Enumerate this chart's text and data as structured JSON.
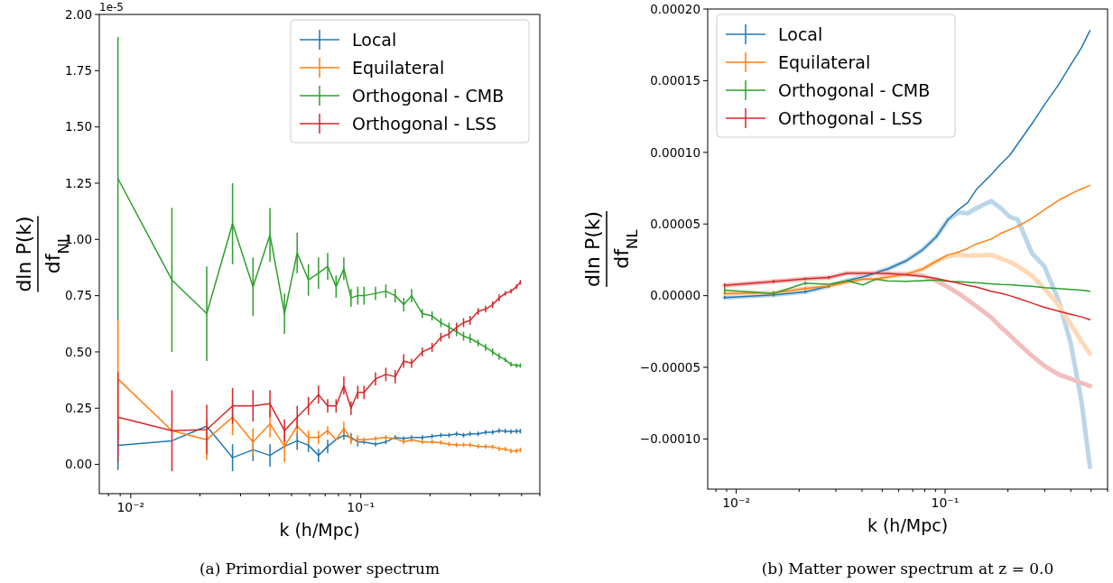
{
  "chart_data": [
    {
      "type": "line",
      "title": "(a) Primordial power spectrum",
      "xlabel": "k (h/Mpc)",
      "ylabel": "dln P(k) df$_{NL}$",
      "annotations": [
        "1e-5"
      ],
      "log": "x",
      "legend": "top right",
      "x": [
        0.0088,
        0.0151,
        0.0214,
        0.0277,
        0.034,
        0.0403,
        0.0466,
        0.0529,
        0.0592,
        0.0655,
        0.0718,
        0.0781,
        0.0844,
        0.0907,
        0.097,
        0.1033,
        0.1159,
        0.1285,
        0.1411,
        0.1537,
        0.1663,
        0.1852,
        0.2041,
        0.223,
        0.2419,
        0.2608,
        0.2797,
        0.2986,
        0.3238,
        0.349,
        0.3742,
        0.3994,
        0.4246,
        0.4498,
        0.475,
        0.4939
      ],
      "xlim": [
        0.0073,
        0.6
      ],
      "xticks": [
        {
          "value": 0.008,
          "label": null
        },
        {
          "value": 0.009,
          "label": null
        },
        {
          "value": 0.01,
          "label": "10⁻²"
        },
        {
          "value": 0.02,
          "label": null
        },
        {
          "value": 0.03,
          "label": null
        },
        {
          "value": 0.04,
          "label": null
        },
        {
          "value": 0.05,
          "label": null
        },
        {
          "value": 0.06,
          "label": null
        },
        {
          "value": 0.07,
          "label": null
        },
        {
          "value": 0.08,
          "label": null
        },
        {
          "value": 0.09,
          "label": null
        },
        {
          "value": 0.1,
          "label": "10⁻¹"
        },
        {
          "value": 0.2,
          "label": null
        },
        {
          "value": 0.3,
          "label": null
        },
        {
          "value": 0.4,
          "label": null
        },
        {
          "value": 0.5,
          "label": null
        },
        {
          "value": 0.6,
          "label": null
        }
      ],
      "ylim": [
        -0.13,
        2.0
      ],
      "yticks": [
        {
          "value": 0,
          "label": "0.00"
        },
        {
          "value": 0.25,
          "label": "0.25"
        },
        {
          "value": 0.5,
          "label": "0.50"
        },
        {
          "value": 0.75,
          "label": "0.75"
        },
        {
          "value": 1.0,
          "label": "1.00"
        },
        {
          "value": 1.25,
          "label": "1.25"
        },
        {
          "value": 1.5,
          "label": "1.50"
        },
        {
          "value": 1.75,
          "label": "1.75"
        },
        {
          "value": 2.0,
          "label": "2.00"
        }
      ],
      "series": [
        {
          "name": "Local",
          "color": "#1f77b4",
          "values": [
            0.085,
            0.105,
            0.17,
            0.03,
            0.065,
            0.04,
            0.08,
            0.105,
            0.085,
            0.04,
            0.08,
            0.11,
            0.13,
            0.12,
            0.1,
            0.1,
            0.09,
            0.1,
            0.12,
            0.115,
            0.12,
            0.12,
            0.125,
            0.13,
            0.13,
            0.136,
            0.13,
            0.136,
            0.136,
            0.143,
            0.143,
            0.15,
            0.148,
            0.146,
            0.148,
            0.148
          ],
          "errors": [
            0.11,
            null,
            null,
            0.06,
            0.05,
            0.05,
            null,
            0.04,
            0.03,
            0.03,
            0.03,
            null,
            0.02,
            0.02,
            0.02,
            0.01,
            0.01,
            0.01,
            0.01,
            0.01,
            0.01,
            0.01,
            0.01,
            0.01,
            0.01,
            0.01,
            0.01,
            0.01,
            0.01,
            0.01,
            0.01,
            0.01,
            0.01,
            0.01,
            0.01,
            0.01
          ]
        },
        {
          "name": "Equilateral",
          "color": "#ff7f0e",
          "values": [
            0.38,
            0.15,
            0.11,
            0.21,
            0.1,
            0.18,
            0.08,
            0.17,
            0.12,
            0.12,
            0.15,
            0.11,
            0.16,
            0.11,
            0.11,
            0.11,
            0.115,
            0.12,
            0.115,
            0.1,
            0.11,
            0.1,
            0.1,
            0.097,
            0.09,
            0.087,
            0.087,
            0.087,
            0.08,
            0.08,
            0.078,
            0.07,
            0.068,
            0.06,
            0.06,
            0.064
          ],
          "errors": [
            0.26,
            null,
            0.09,
            0.08,
            0.06,
            0.06,
            0.07,
            0.04,
            0.03,
            0.03,
            0.02,
            null,
            0.03,
            0.02,
            0.02,
            0.01,
            0.01,
            0.01,
            null,
            0.01,
            0.01,
            0.01,
            0.01,
            0.01,
            0.01,
            0.01,
            0.01,
            0.01,
            0.01,
            0.01,
            0.01,
            0.01,
            0.01,
            0.01,
            0.01,
            0.01
          ]
        },
        {
          "name": "Orthogonal - CMB",
          "color": "#2ca02c",
          "values": [
            1.27,
            0.82,
            0.67,
            1.07,
            0.79,
            1.02,
            0.67,
            0.94,
            0.82,
            0.85,
            0.88,
            0.79,
            0.87,
            0.74,
            0.75,
            0.75,
            0.76,
            0.77,
            0.75,
            0.71,
            0.75,
            0.67,
            0.66,
            0.63,
            0.61,
            0.59,
            0.57,
            0.56,
            0.54,
            0.52,
            0.5,
            0.48,
            0.465,
            0.445,
            0.44,
            0.44
          ],
          "errors": [
            0.63,
            0.32,
            0.21,
            0.18,
            0.13,
            0.12,
            0.09,
            0.09,
            0.07,
            0.07,
            0.06,
            0.05,
            0.05,
            0.04,
            0.04,
            0.04,
            0.03,
            0.03,
            0.03,
            0.03,
            0.03,
            0.02,
            0.02,
            0.02,
            0.02,
            0.02,
            0.02,
            0.02,
            0.015,
            0.015,
            0.015,
            0.015,
            0.01,
            0.01,
            0.01,
            0.01
          ]
        },
        {
          "name": "Orthogonal - LSS",
          "color": "#d62728",
          "values": [
            0.21,
            0.15,
            0.155,
            0.26,
            0.26,
            0.27,
            0.15,
            0.21,
            0.26,
            0.31,
            0.26,
            0.26,
            0.35,
            0.25,
            0.32,
            0.32,
            0.38,
            0.4,
            0.39,
            0.46,
            0.45,
            0.5,
            0.52,
            0.565,
            0.58,
            0.61,
            0.63,
            0.64,
            0.68,
            0.69,
            0.71,
            0.74,
            0.76,
            0.77,
            0.79,
            0.81
          ],
          "errors": [
            0.2,
            0.18,
            0.11,
            0.08,
            0.07,
            0.06,
            0.05,
            0.05,
            0.04,
            0.04,
            0.03,
            0.03,
            0.04,
            0.03,
            0.03,
            0.03,
            0.03,
            0.03,
            0.03,
            0.03,
            0.02,
            0.02,
            0.02,
            0.02,
            0.02,
            0.02,
            0.02,
            0.02,
            0.015,
            0.015,
            0.015,
            0.015,
            0.01,
            0.01,
            0.01,
            0.01
          ]
        }
      ]
    },
    {
      "type": "line",
      "title": "(b) Matter power spectrum at z = 0.0",
      "xlabel": "k (h/Mpc)",
      "ylabel": "dln P(k) df$_{NL}$",
      "log": "x",
      "legend": "top left",
      "x": [
        0.0088,
        0.0151,
        0.0214,
        0.0277,
        0.034,
        0.0403,
        0.0466,
        0.0529,
        0.0655,
        0.0781,
        0.0907,
        0.1033,
        0.1159,
        0.1285,
        0.1411,
        0.1663,
        0.1852,
        0.2041,
        0.223,
        0.2608,
        0.2986,
        0.349,
        0.3994,
        0.4498,
        0.4939
      ],
      "xlim": [
        0.0073,
        0.6
      ],
      "xticks": [
        {
          "value": 0.008,
          "label": null
        },
        {
          "value": 0.009,
          "label": null
        },
        {
          "value": 0.01,
          "label": "10⁻²"
        },
        {
          "value": 0.02,
          "label": null
        },
        {
          "value": 0.03,
          "label": null
        },
        {
          "value": 0.04,
          "label": null
        },
        {
          "value": 0.05,
          "label": null
        },
        {
          "value": 0.06,
          "label": null
        },
        {
          "value": 0.07,
          "label": null
        },
        {
          "value": 0.08,
          "label": null
        },
        {
          "value": 0.09,
          "label": null
        },
        {
          "value": 0.1,
          "label": "10⁻¹"
        },
        {
          "value": 0.2,
          "label": null
        },
        {
          "value": 0.3,
          "label": null
        },
        {
          "value": 0.4,
          "label": null
        },
        {
          "value": 0.5,
          "label": null
        },
        {
          "value": 0.6,
          "label": null
        }
      ],
      "ylim": [
        -0.000135,
        0.0002
      ],
      "yticks": [
        {
          "value": -0.0001,
          "label": "−0.00010"
        },
        {
          "value": -5e-05,
          "label": "−0.00005"
        },
        {
          "value": 0,
          "label": "0.00000"
        },
        {
          "value": 5e-05,
          "label": "0.00005"
        },
        {
          "value": 0.0001,
          "label": "0.00010"
        },
        {
          "value": 0.00015,
          "label": "0.00015"
        },
        {
          "value": 0.0002,
          "label": "0.00020"
        }
      ],
      "series": [
        {
          "color": "#bcd6e8",
          "values": [
            -1.3e-06,
            5e-07,
            2.7e-06,
            6.5e-06,
            1.05e-05,
            1.3e-05,
            1.6e-05,
            1.85e-05,
            2.45e-05,
            3.2e-05,
            4.1e-05,
            5.3e-05,
            5.8e-05,
            5.75e-05,
            6.1e-05,
            6.6e-05,
            6.1e-05,
            5.5e-05,
            5.3e-05,
            2.95e-05,
            2.05e-05,
            -3e-06,
            -3.3e-05,
            -7.35e-05,
            -0.0001195
          ]
        },
        {
          "color": "#ffd9b7",
          "values": [
            1.5e-06,
            2e-06,
            5e-06,
            6.7e-06,
            9.5e-06,
            1.15e-05,
            1.15e-05,
            1.3e-05,
            1.5e-05,
            1.85e-05,
            2.4e-05,
            2.75e-05,
            2.85e-05,
            2.8e-05,
            2.8e-05,
            2.85e-05,
            2.6e-05,
            2.35e-05,
            2.05e-05,
            1.4e-05,
            5e-06,
            -6.5e-06,
            -2e-05,
            -3.2e-05,
            -4.05e-05
          ]
        },
        {
          "color": "#f3bebe",
          "values": [
            7.2e-06,
            9.9e-06,
            1.17e-05,
            1.26e-05,
            1.57e-05,
            1.57e-05,
            1.57e-05,
            1.55e-05,
            1.5e-05,
            1.4e-05,
            1.05e-05,
            6e-06,
            1.6e-06,
            -3e-06,
            -7.4e-06,
            -1.52e-05,
            -2.2e-05,
            -2.76e-05,
            -3.3e-05,
            -4.2e-05,
            -4.9e-05,
            -5.5e-05,
            -5.8e-05,
            -6.1e-05,
            -6.3e-05
          ]
        },
        {
          "name": "Local",
          "color": "#1f77b4",
          "values": [
            -1.3e-06,
            5e-07,
            2.7e-06,
            6.5e-06,
            1.05e-05,
            1.3e-05,
            1.6e-05,
            1.85e-05,
            2.45e-05,
            3.2e-05,
            4.1e-05,
            5.3e-05,
            6e-05,
            6.5e-05,
            7.4e-05,
            8.45e-05,
            9.2e-05,
            9.8e-05,
            0.000106,
            0.00012,
            0.000133,
            0.000147,
            0.000161,
            0.000173,
            0.000185
          ],
          "errors": [
            1e-06,
            1e-06,
            1e-06,
            1e-06,
            null,
            null,
            null,
            null,
            null,
            null,
            null,
            null,
            null,
            null,
            null,
            null,
            null,
            null,
            null,
            null,
            null,
            null,
            null,
            null,
            null
          ]
        },
        {
          "name": "Equilateral",
          "color": "#ff7f0e",
          "values": [
            1.5e-06,
            2e-06,
            5e-06,
            6.7e-06,
            9.5e-06,
            1.15e-05,
            1.15e-05,
            1.3e-05,
            1.5e-05,
            1.85e-05,
            2.4e-05,
            2.85e-05,
            3.05e-05,
            3.3e-05,
            3.6e-05,
            3.95e-05,
            4.35e-05,
            4.6e-05,
            4.85e-05,
            5.4e-05,
            6e-05,
            6.65e-05,
            7.1e-05,
            7.45e-05,
            7.7e-05
          ],
          "errors": [
            1e-06,
            1e-06,
            1e-06,
            null,
            null,
            null,
            null,
            null,
            null,
            null,
            null,
            null,
            null,
            null,
            null,
            null,
            null,
            null,
            null,
            null,
            null,
            null,
            null,
            null,
            null
          ]
        },
        {
          "name": "Orthogonal - CMB",
          "color": "#2ca02c",
          "values": [
            3.8e-06,
            1.5e-06,
            8.7e-06,
            8e-06,
            1.05e-05,
            7.5e-06,
            1.15e-05,
            1.03e-05,
            1e-05,
            1.05e-05,
            1.1e-05,
            1e-05,
            9.8e-06,
            9.4e-06,
            9e-06,
            8.3e-06,
            7.8e-06,
            7.6e-06,
            7.2e-06,
            6.5e-06,
            5.6e-06,
            5e-06,
            4.3e-06,
            3.8e-06,
            3.1e-06
          ],
          "errors": [
            2e-06,
            1.5e-06,
            1.2e-06,
            null,
            null,
            null,
            null,
            null,
            null,
            null,
            null,
            null,
            null,
            null,
            null,
            null,
            null,
            null,
            null,
            null,
            null,
            null,
            null,
            null,
            null
          ]
        },
        {
          "name": "Orthogonal - LSS",
          "color": "#d62728",
          "values": [
            7.2e-06,
            9.9e-06,
            1.17e-05,
            1.26e-05,
            1.57e-05,
            1.57e-05,
            1.57e-05,
            1.55e-05,
            1.46e-05,
            1.35e-05,
            1.21e-05,
            1.03e-05,
            8.7e-06,
            7.2e-06,
            6e-06,
            3.1e-06,
            1.6e-06,
            0,
            -1.8e-06,
            -5.2e-06,
            -8.1e-06,
            -1.08e-05,
            -1.3e-05,
            -1.48e-05,
            -1.68e-05
          ],
          "errors": [
            1.5e-06,
            1.2e-06,
            1e-06,
            1e-06,
            null,
            null,
            null,
            null,
            null,
            null,
            null,
            null,
            null,
            null,
            null,
            null,
            null,
            null,
            null,
            null,
            null,
            null,
            null,
            null,
            null
          ]
        }
      ]
    }
  ]
}
